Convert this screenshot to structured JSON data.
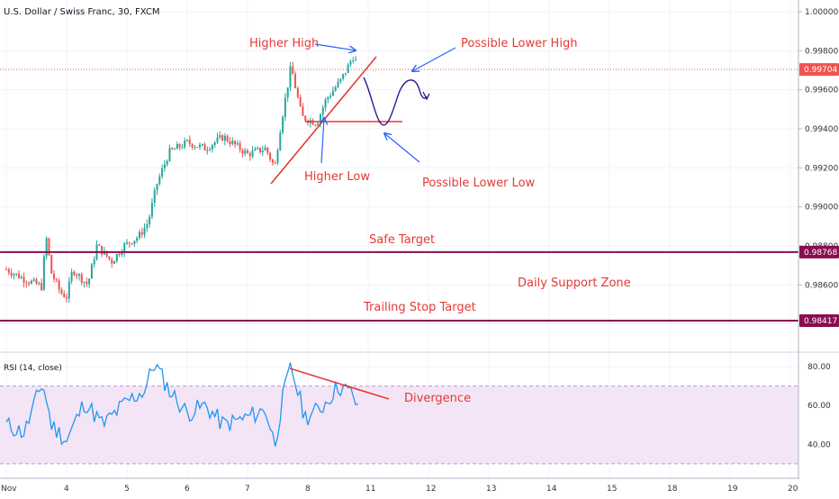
{
  "header": {
    "title": "U.S. Dollar / Swiss Franc, 30, FXCM"
  },
  "rsi_panel": {
    "label": "RSI (14, close)"
  },
  "colors": {
    "candle_up": "#26a69a",
    "candle_down": "#ef5350",
    "annotation_red": "#e53935",
    "arrow_blue": "#2962ff",
    "level_line": "#880e4f",
    "price_tag": "#ef5350",
    "rsi_line": "#2196f3",
    "rsi_band": "#f3e5f5",
    "drawing_purple": "#311b92"
  },
  "annotations": {
    "higher_high": "Higher High",
    "possible_lower_high": "Possible Lower High",
    "higher_low": "Higher Low",
    "possible_lower_low": "Possible Lower Low",
    "safe_target": "Safe Target",
    "daily_support_zone": "Daily Support Zone",
    "trailing_stop_target": "Trailing Stop Target",
    "divergence": "Divergence"
  },
  "chart_data": [
    {
      "type": "candlestick",
      "title": "U.S. Dollar / Swiss Franc, 30, FXCM",
      "x_ticks": [
        "Nov",
        "4",
        "5",
        "6",
        "7",
        "8",
        "11",
        "12",
        "13",
        "14",
        "15",
        "18",
        "19",
        "20"
      ],
      "y_ticks": [
        "1.00000",
        "0.99800",
        "0.99600",
        "0.99400",
        "0.99200",
        "0.99000",
        "0.98800",
        "0.98600",
        "0.98400"
      ],
      "ylim": [
        0.9826,
        1.0006
      ],
      "current_price": "0.99704",
      "levels": [
        {
          "label": "Safe Target",
          "value": "0.98768"
        },
        {
          "label": "Trailing Stop Target",
          "value": "0.98417"
        }
      ],
      "trend_close_anchors": [
        {
          "day": 0.0,
          "close": 0.9868
        },
        {
          "day": 0.3,
          "close": 0.9863
        },
        {
          "day": 0.6,
          "close": 0.9859
        },
        {
          "day": 0.65,
          "close": 0.9887
        },
        {
          "day": 0.75,
          "close": 0.9866
        },
        {
          "day": 0.9,
          "close": 0.9856
        },
        {
          "day": 1.0,
          "close": 0.9854
        },
        {
          "day": 1.1,
          "close": 0.9868
        },
        {
          "day": 1.35,
          "close": 0.986
        },
        {
          "day": 1.5,
          "close": 0.988
        },
        {
          "day": 1.75,
          "close": 0.9872
        },
        {
          "day": 1.95,
          "close": 0.988
        },
        {
          "day": 2.2,
          "close": 0.9885
        },
        {
          "day": 2.35,
          "close": 0.9892
        },
        {
          "day": 2.5,
          "close": 0.9912
        },
        {
          "day": 2.7,
          "close": 0.9928
        },
        {
          "day": 3.0,
          "close": 0.9933
        },
        {
          "day": 3.3,
          "close": 0.993
        },
        {
          "day": 3.6,
          "close": 0.9936
        },
        {
          "day": 4.0,
          "close": 0.9927
        },
        {
          "day": 4.3,
          "close": 0.993
        },
        {
          "day": 4.45,
          "close": 0.992
        },
        {
          "day": 4.55,
          "close": 0.9942
        },
        {
          "day": 4.72,
          "close": 0.9972
        },
        {
          "day": 4.9,
          "close": 0.9946
        },
        {
          "day": 5.15,
          "close": 0.9943
        },
        {
          "day": 5.3,
          "close": 0.9955
        },
        {
          "day": 5.55,
          "close": 0.9965
        },
        {
          "day": 5.75,
          "close": 0.9977
        },
        {
          "day": 5.82,
          "close": 0.9973
        }
      ],
      "rsi": {
        "label": "RSI (14, close)",
        "y_ticks": [
          "80.00",
          "60.00",
          "40.00"
        ],
        "ylim": [
          23,
          87
        ],
        "band": [
          30,
          70
        ],
        "anchors": [
          {
            "day": 0.0,
            "value": 50
          },
          {
            "day": 0.3,
            "value": 46
          },
          {
            "day": 0.6,
            "value": 72
          },
          {
            "day": 0.75,
            "value": 50
          },
          {
            "day": 1.0,
            "value": 42
          },
          {
            "day": 1.3,
            "value": 62
          },
          {
            "day": 1.6,
            "value": 50
          },
          {
            "day": 2.0,
            "value": 62
          },
          {
            "day": 2.3,
            "value": 68
          },
          {
            "day": 2.45,
            "value": 82
          },
          {
            "day": 2.7,
            "value": 68
          },
          {
            "day": 3.0,
            "value": 56
          },
          {
            "day": 3.3,
            "value": 60
          },
          {
            "day": 3.6,
            "value": 50
          },
          {
            "day": 4.0,
            "value": 54
          },
          {
            "day": 4.3,
            "value": 58
          },
          {
            "day": 4.45,
            "value": 40
          },
          {
            "day": 4.6,
            "value": 66
          },
          {
            "day": 4.72,
            "value": 80
          },
          {
            "day": 4.95,
            "value": 54
          },
          {
            "day": 5.2,
            "value": 58
          },
          {
            "day": 5.5,
            "value": 70
          },
          {
            "day": 5.75,
            "value": 66
          },
          {
            "day": 5.85,
            "value": 55
          }
        ]
      }
    }
  ]
}
